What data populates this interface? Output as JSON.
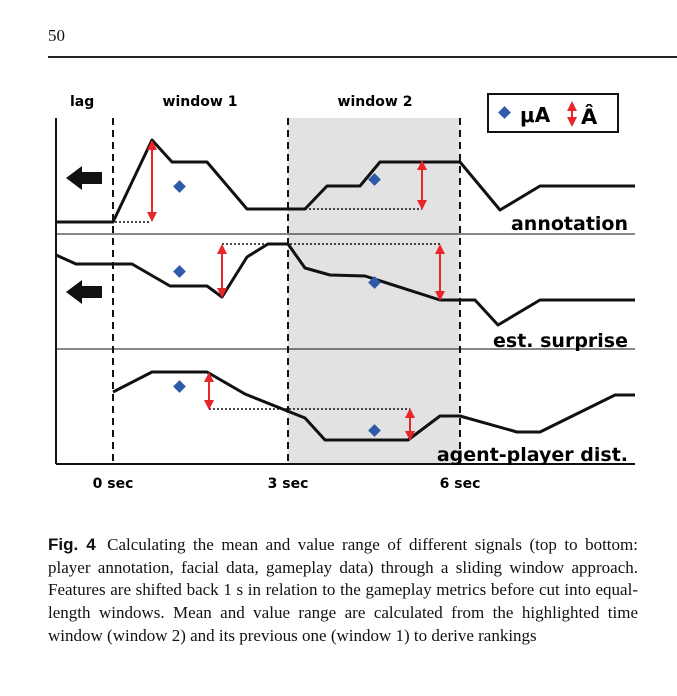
{
  "page": {
    "number": "50"
  },
  "figure": {
    "panel_labels": {
      "lag": "lag",
      "window1": "window 1",
      "window2": "window 2"
    },
    "legend": {
      "mean_label": "μA",
      "range_label": "Â"
    },
    "signal_labels": [
      "annotation",
      "est. surprise",
      "agent-player dist."
    ],
    "time_labels": [
      "0 sec",
      "3 sec",
      "6 sec"
    ],
    "colors": {
      "highlight": "#e2e2e2",
      "mean_marker": "#2e5aa8",
      "range_arrow": "#e8262a",
      "line": "#111111"
    }
  },
  "caption": {
    "label": "Fig. 4",
    "text": "Calculating the mean and value range of different signals (top to bottom: player annotation, facial data, gameplay data) through a sliding window approach. Features are shifted back 1 s in relation to the gameplay metrics before cut into equal-length windows. Mean and value range are calculated from the highlighted time window (window 2) and its previous one (window 1) to derive rankings"
  }
}
